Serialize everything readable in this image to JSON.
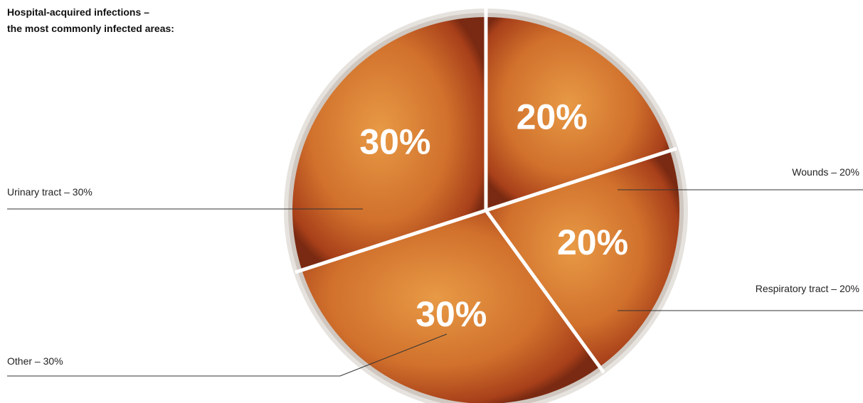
{
  "chart_data": {
    "type": "pie",
    "title": [
      "Hospital-acquired infections –",
      "the most commonly infected areas:"
    ],
    "categories": [
      "Wounds",
      "Respiratory tract",
      "Other",
      "Urinary tract"
    ],
    "values": [
      20,
      20,
      30,
      30
    ],
    "value_labels": [
      "20%",
      "20%",
      "30%",
      "30%"
    ],
    "labels": [
      "Wounds – 20%",
      "Respiratory tract – 20%",
      "Other – 30%",
      "Urinary tract – 30%"
    ]
  }
}
